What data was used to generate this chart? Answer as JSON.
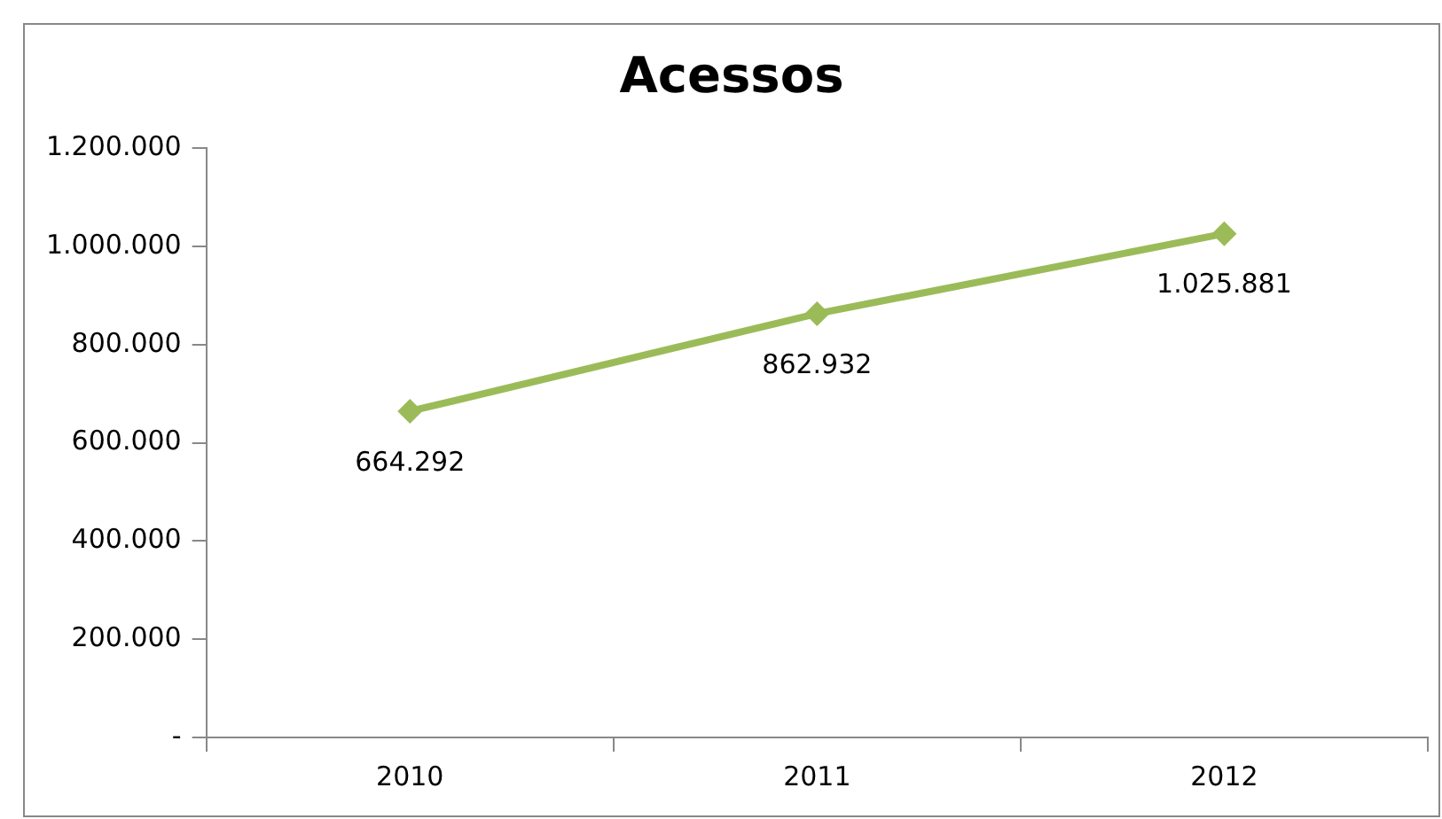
{
  "chart_data": {
    "type": "line",
    "title": "Acessos",
    "categories": [
      "2010",
      "2011",
      "2012"
    ],
    "series": [
      {
        "color": "#9bbb59",
        "values": [
          664292,
          862932,
          1025881
        ],
        "value_labels": [
          "664.292",
          "862.932",
          "1.025.881"
        ]
      }
    ],
    "ylim": [
      0,
      1200000
    ],
    "yticks": [
      {
        "value": 0,
        "label": "-"
      },
      {
        "value": 200000,
        "label": "200.000"
      },
      {
        "value": 400000,
        "label": "400.000"
      },
      {
        "value": 600000,
        "label": "600.000"
      },
      {
        "value": 800000,
        "label": "800.000"
      },
      {
        "value": 1000000,
        "label": "1.000.000"
      },
      {
        "value": 1200000,
        "label": "1.200.000"
      }
    ],
    "grid": false,
    "legend": false,
    "marker": "diamond",
    "line_style": "solid"
  }
}
